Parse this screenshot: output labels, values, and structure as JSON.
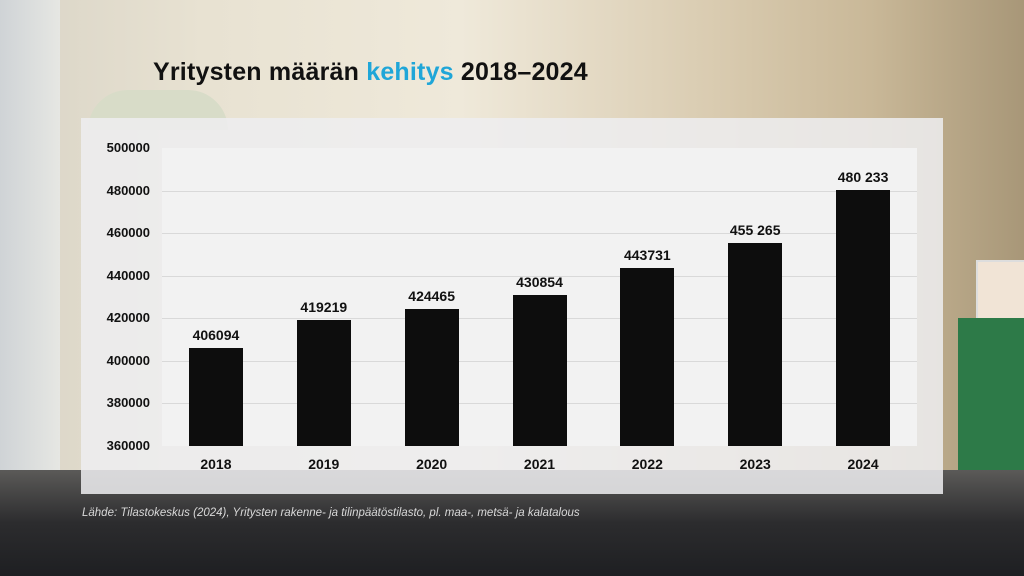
{
  "title": {
    "part1": "Yritysten määrän ",
    "accent": "kehitys",
    "part2": " 2018–2024",
    "accent_color": "#1fa6d8"
  },
  "source": "Lähde: Tilastokeskus (2024), Yritysten rakenne- ja tilinpäätöstilasto, pl. maa-, metsä- ja kalatalous",
  "chart_data": {
    "type": "bar",
    "title": "Yritysten määrän kehitys 2018–2024",
    "xlabel": "",
    "ylabel": "",
    "categories": [
      "2018",
      "2019",
      "2020",
      "2021",
      "2022",
      "2023",
      "2024"
    ],
    "values": [
      406094,
      419219,
      424465,
      430854,
      443731,
      455265,
      480233
    ],
    "value_labels": [
      "406094",
      "419219",
      "424465",
      "430854",
      "443731",
      "455 265",
      "480 233"
    ],
    "ylim": [
      360000,
      500000
    ],
    "yticks": [
      "500000",
      "480000",
      "460000",
      "440000",
      "420000",
      "400000",
      "380000",
      "360000"
    ],
    "grid": true,
    "legend": "none",
    "bar_color": "#0d0d0d"
  }
}
